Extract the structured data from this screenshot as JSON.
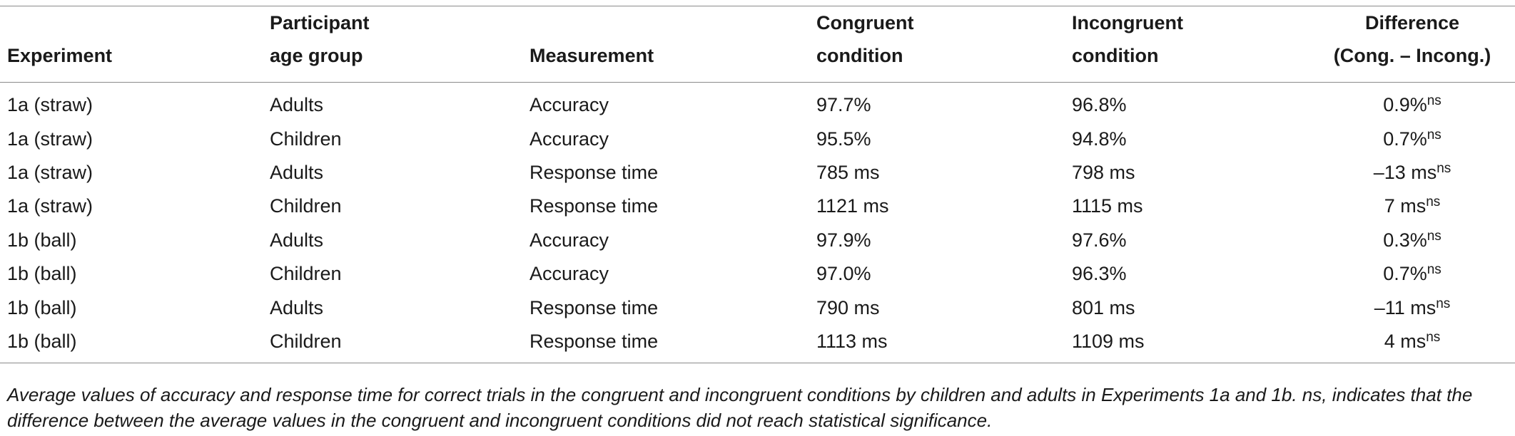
{
  "table": {
    "headers": {
      "experiment": "Experiment",
      "age_group": [
        "Participant",
        "age group"
      ],
      "measurement": "Measurement",
      "congruent": [
        "Congruent",
        "condition"
      ],
      "incongruent": [
        "Incongruent",
        "condition"
      ],
      "difference": [
        "Difference",
        "(Cong. – Incong.)"
      ]
    },
    "rows": [
      {
        "experiment": "1a (straw)",
        "age_group": "Adults",
        "measurement": "Accuracy",
        "congruent": "97.7%",
        "incongruent": "96.8%",
        "difference": "0.9%",
        "sig": "ns"
      },
      {
        "experiment": "1a (straw)",
        "age_group": "Children",
        "measurement": "Accuracy",
        "congruent": "95.5%",
        "incongruent": "94.8%",
        "difference": "0.7%",
        "sig": "ns"
      },
      {
        "experiment": "1a (straw)",
        "age_group": "Adults",
        "measurement": "Response time",
        "congruent": "785 ms",
        "incongruent": "798 ms",
        "difference": "–13 ms",
        "sig": "ns"
      },
      {
        "experiment": "1a (straw)",
        "age_group": "Children",
        "measurement": "Response time",
        "congruent": "1121 ms",
        "incongruent": "1115 ms",
        "difference": "7 ms",
        "sig": "ns"
      },
      {
        "experiment": "1b (ball)",
        "age_group": "Adults",
        "measurement": "Accuracy",
        "congruent": "97.9%",
        "incongruent": "97.6%",
        "difference": "0.3%",
        "sig": "ns"
      },
      {
        "experiment": "1b (ball)",
        "age_group": "Children",
        "measurement": "Accuracy",
        "congruent": "97.0%",
        "incongruent": "96.3%",
        "difference": "0.7%",
        "sig": "ns"
      },
      {
        "experiment": "1b (ball)",
        "age_group": "Adults",
        "measurement": "Response time",
        "congruent": "790 ms",
        "incongruent": "801 ms",
        "difference": "–11 ms",
        "sig": "ns"
      },
      {
        "experiment": "1b (ball)",
        "age_group": "Children",
        "measurement": "Response time",
        "congruent": "1113 ms",
        "incongruent": "1109 ms",
        "difference": "4 ms",
        "sig": "ns"
      }
    ]
  },
  "footnote": "Average values of accuracy and response time for correct trials in the congruent and incongruent conditions by children and adults in Experiments 1a and 1b. ns, indicates that the difference between the average values in the congruent and incongruent conditions did not reach statistical significance."
}
